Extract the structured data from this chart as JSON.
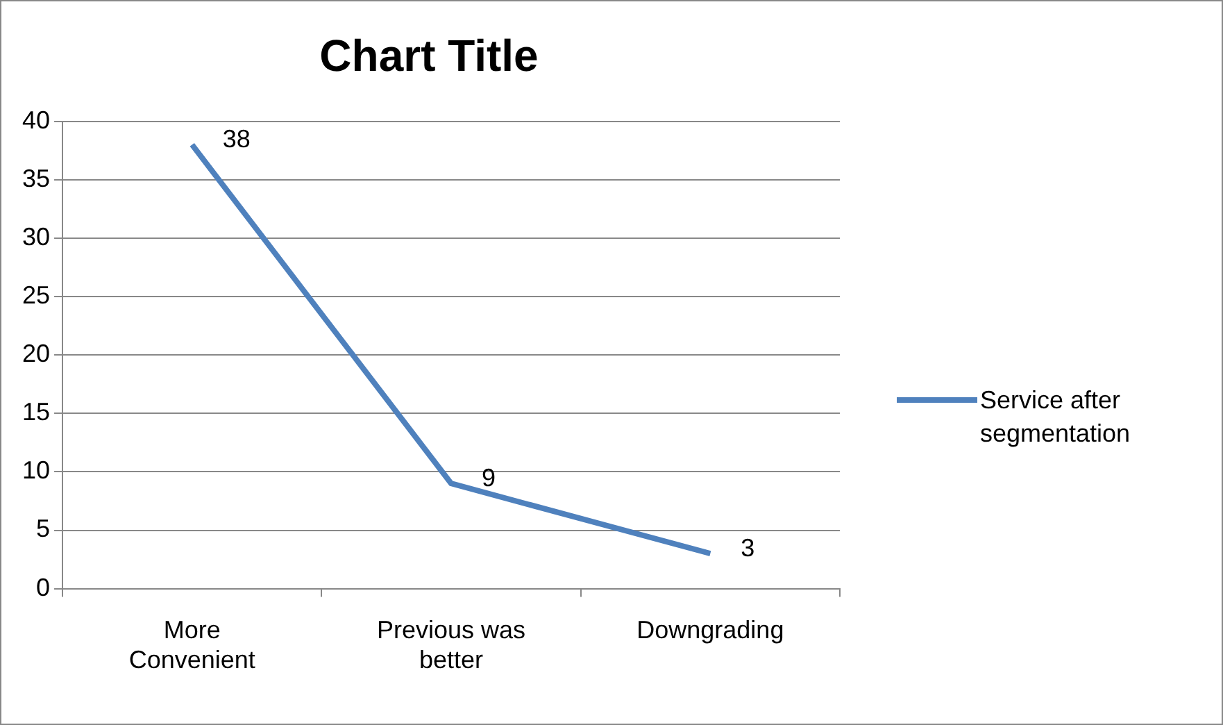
{
  "chart_data": {
    "type": "line",
    "title": "Chart Title",
    "categories": [
      "More Convenient",
      "Previous was better",
      "Downgrading"
    ],
    "series": [
      {
        "name": "Service after segmentation",
        "color": "#4f81bd",
        "values": [
          38,
          9,
          3
        ]
      }
    ],
    "ylim": [
      0,
      40
    ],
    "yticks": [
      0,
      5,
      10,
      15,
      20,
      25,
      30,
      35,
      40
    ],
    "grid": "y",
    "legend": "right",
    "marker": "none",
    "line_style": "solid",
    "data_labels": true
  }
}
